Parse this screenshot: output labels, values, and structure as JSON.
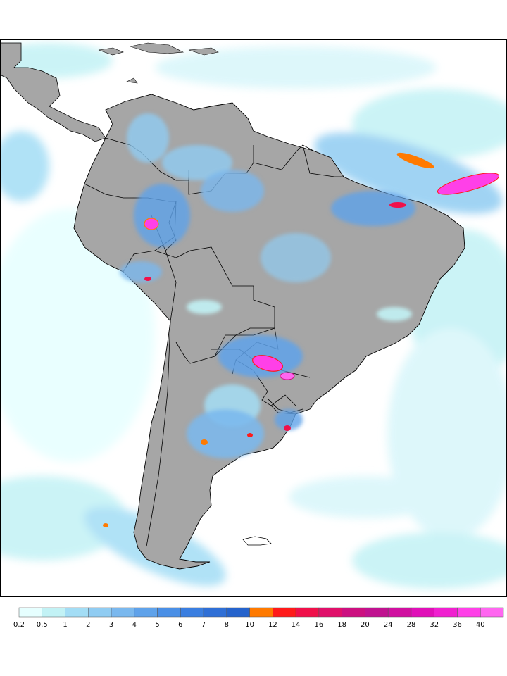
{
  "map": {
    "land_color": "#a6a6a6",
    "ocean_color": "#ffffff",
    "border_color": "#000000"
  },
  "legend": {
    "levels": [
      "0.2",
      "0.5",
      "1",
      "2",
      "3",
      "4",
      "5",
      "6",
      "7",
      "8",
      "10",
      "12",
      "14",
      "16",
      "18",
      "20",
      "24",
      "28",
      "32",
      "36",
      "40"
    ],
    "colors": [
      "#e6ffff",
      "#c2f2f5",
      "#a3ddf5",
      "#90ccf2",
      "#7ab8ee",
      "#5fa2ea",
      "#4a8fe6",
      "#3a7ee0",
      "#2f6fd6",
      "#2563cc",
      "#ff7a00",
      "#ff1a1a",
      "#f0104a",
      "#e0106a",
      "#cc1080",
      "#c01290",
      "#d010a0",
      "#e010b8",
      "#f020d0",
      "#ff40e8",
      "#ff66f0"
    ]
  }
}
